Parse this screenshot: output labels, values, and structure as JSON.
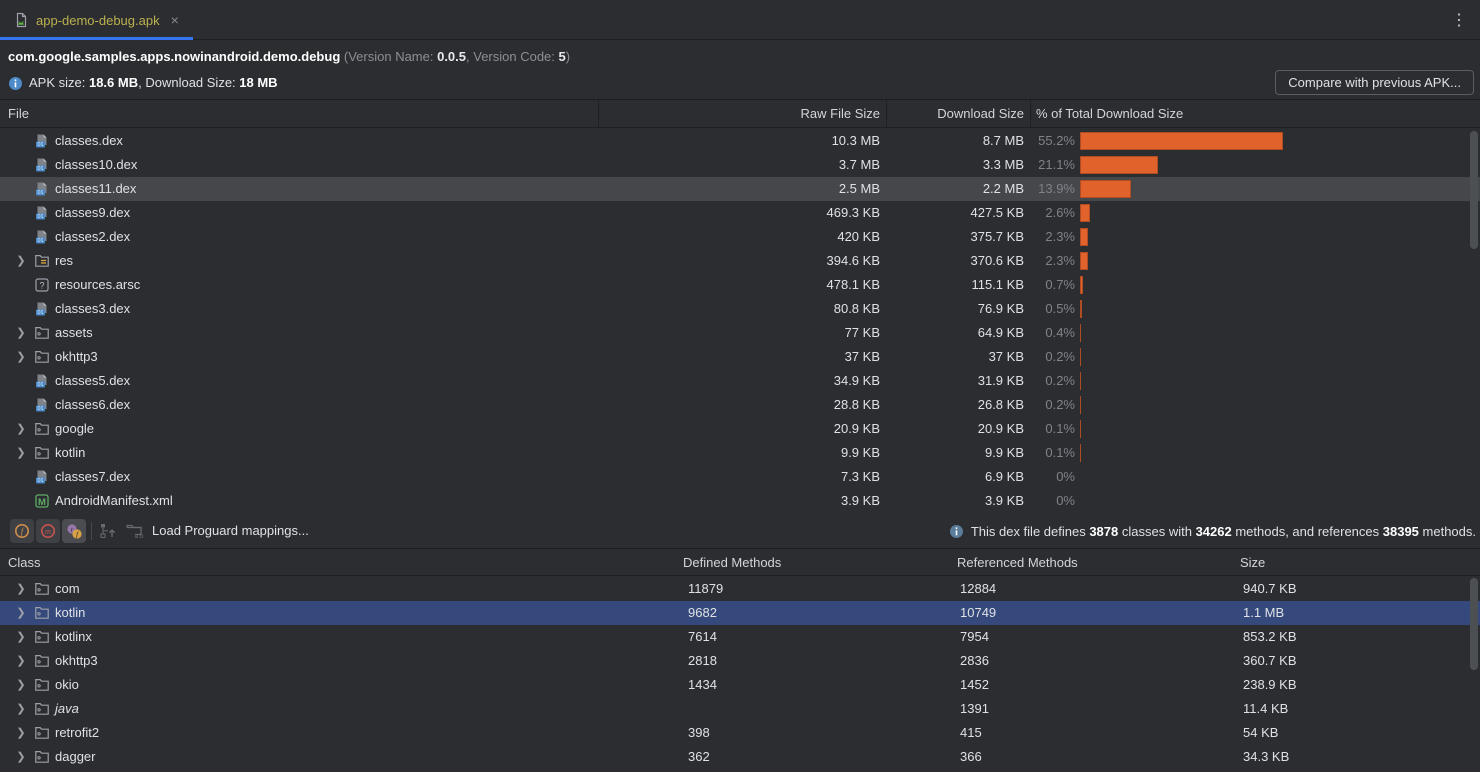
{
  "colors": {
    "background": "#2b2d30",
    "panel_border": "#1e1f22",
    "accent_blue": "#3574f0",
    "bar_orange": "#e2622c",
    "selection_blue": "#35497c",
    "selection_gray": "#45474b",
    "tab_label_yellow": "#bcb14f",
    "muted_text": "#8c8f96"
  },
  "tab": {
    "title": "app-demo-debug.apk",
    "close": "×"
  },
  "kebab": "⋮",
  "header": {
    "package": "com.google.samples.apps.nowinandroid.demo.debug",
    "version_prefix": "(Version Name: ",
    "version_name": "0.0.5",
    "version_mid": ", Version Code: ",
    "version_code": "5",
    "version_suffix": ")",
    "apk_size_label": "APK size: ",
    "apk_size": "18.6 MB",
    "download_label": ", Download Size: ",
    "download_size": "18 MB",
    "compare_button": "Compare with previous APK..."
  },
  "file_table": {
    "columns": {
      "file": "File",
      "raw": "Raw File Size",
      "download": "Download Size",
      "percent": "% of Total Download Size"
    },
    "rows": [
      {
        "name": "classes.dex",
        "icon": "dex-file",
        "expandable": false,
        "raw": "10.3 MB",
        "download": "8.7 MB",
        "pct": "55.2%",
        "pct_value": 55.2,
        "selected": false
      },
      {
        "name": "classes10.dex",
        "icon": "dex-file",
        "expandable": false,
        "raw": "3.7 MB",
        "download": "3.3 MB",
        "pct": "21.1%",
        "pct_value": 21.1,
        "selected": false
      },
      {
        "name": "classes11.dex",
        "icon": "dex-file",
        "expandable": false,
        "raw": "2.5 MB",
        "download": "2.2 MB",
        "pct": "13.9%",
        "pct_value": 13.9,
        "selected": true
      },
      {
        "name": "classes9.dex",
        "icon": "dex-file",
        "expandable": false,
        "raw": "469.3 KB",
        "download": "427.5 KB",
        "pct": "2.6%",
        "pct_value": 2.6,
        "selected": false
      },
      {
        "name": "classes2.dex",
        "icon": "dex-file",
        "expandable": false,
        "raw": "420 KB",
        "download": "375.7 KB",
        "pct": "2.3%",
        "pct_value": 2.3,
        "selected": false
      },
      {
        "name": "res",
        "icon": "res-folder",
        "expandable": true,
        "raw": "394.6 KB",
        "download": "370.6 KB",
        "pct": "2.3%",
        "pct_value": 2.3,
        "selected": false
      },
      {
        "name": "resources.arsc",
        "icon": "arsc-file",
        "expandable": false,
        "raw": "478.1 KB",
        "download": "115.1 KB",
        "pct": "0.7%",
        "pct_value": 0.7,
        "selected": false
      },
      {
        "name": "classes3.dex",
        "icon": "dex-file",
        "expandable": false,
        "raw": "80.8 KB",
        "download": "76.9 KB",
        "pct": "0.5%",
        "pct_value": 0.5,
        "selected": false
      },
      {
        "name": "assets",
        "icon": "folder",
        "expandable": true,
        "raw": "77 KB",
        "download": "64.9 KB",
        "pct": "0.4%",
        "pct_value": 0.4,
        "selected": false
      },
      {
        "name": "okhttp3",
        "icon": "folder",
        "expandable": true,
        "raw": "37 KB",
        "download": "37 KB",
        "pct": "0.2%",
        "pct_value": 0.2,
        "selected": false
      },
      {
        "name": "classes5.dex",
        "icon": "dex-file",
        "expandable": false,
        "raw": "34.9 KB",
        "download": "31.9 KB",
        "pct": "0.2%",
        "pct_value": 0.2,
        "selected": false
      },
      {
        "name": "classes6.dex",
        "icon": "dex-file",
        "expandable": false,
        "raw": "28.8 KB",
        "download": "26.8 KB",
        "pct": "0.2%",
        "pct_value": 0.2,
        "selected": false
      },
      {
        "name": "google",
        "icon": "folder",
        "expandable": true,
        "raw": "20.9 KB",
        "download": "20.9 KB",
        "pct": "0.1%",
        "pct_value": 0.1,
        "selected": false
      },
      {
        "name": "kotlin",
        "icon": "folder",
        "expandable": true,
        "raw": "9.9 KB",
        "download": "9.9 KB",
        "pct": "0.1%",
        "pct_value": 0.1,
        "selected": false
      },
      {
        "name": "classes7.dex",
        "icon": "dex-file",
        "expandable": false,
        "raw": "7.3 KB",
        "download": "6.9 KB",
        "pct": "0%",
        "pct_value": 0,
        "selected": false
      },
      {
        "name": "AndroidManifest.xml",
        "icon": "manifest-file",
        "expandable": false,
        "raw": "3.9 KB",
        "download": "3.9 KB",
        "pct": "0%",
        "pct_value": 0,
        "selected": false
      }
    ]
  },
  "toolbar": {
    "load_mappings_label": "Load Proguard mappings...",
    "info_parts": [
      "This dex file defines ",
      "3878",
      " classes with ",
      "34262",
      " methods, and references ",
      "38395",
      " methods."
    ]
  },
  "class_table": {
    "columns": {
      "class": "Class",
      "defined": "Defined Methods",
      "referenced": "Referenced Methods",
      "size": "Size"
    },
    "rows": [
      {
        "name": "com",
        "defined": "11879",
        "referenced": "12884",
        "size": "940.7 KB",
        "selected": false,
        "italic": false
      },
      {
        "name": "kotlin",
        "defined": "9682",
        "referenced": "10749",
        "size": "1.1 MB",
        "selected": true,
        "italic": false
      },
      {
        "name": "kotlinx",
        "defined": "7614",
        "referenced": "7954",
        "size": "853.2 KB",
        "selected": false,
        "italic": false
      },
      {
        "name": "okhttp3",
        "defined": "2818",
        "referenced": "2836",
        "size": "360.7 KB",
        "selected": false,
        "italic": false
      },
      {
        "name": "okio",
        "defined": "1434",
        "referenced": "1452",
        "size": "238.9 KB",
        "selected": false,
        "italic": false
      },
      {
        "name": "java",
        "defined": "",
        "referenced": "1391",
        "size": "11.4 KB",
        "selected": false,
        "italic": true
      },
      {
        "name": "retrofit2",
        "defined": "398",
        "referenced": "415",
        "size": "54 KB",
        "selected": false,
        "italic": false
      },
      {
        "name": "dagger",
        "defined": "362",
        "referenced": "366",
        "size": "34.3 KB",
        "selected": false,
        "italic": false
      }
    ]
  }
}
